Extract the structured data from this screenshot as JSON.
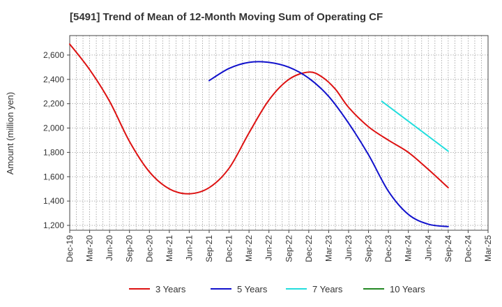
{
  "chart_data": {
    "type": "line",
    "title": "[5491]  Trend of Mean of 12-Month Moving Sum of Operating CF",
    "xlabel": "",
    "ylabel": "Amount (million yen)",
    "ylim": [
      1160,
      2760
    ],
    "yticks": [
      1200,
      1400,
      1600,
      1800,
      2000,
      2200,
      2400,
      2600
    ],
    "ytick_labels": [
      "1,200",
      "1,400",
      "1,600",
      "1,800",
      "2,000",
      "2,200",
      "2,400",
      "2,600"
    ],
    "x_categories": [
      "Dec-19",
      "Mar-20",
      "Jun-20",
      "Sep-20",
      "Dec-20",
      "Mar-21",
      "Jun-21",
      "Sep-21",
      "Dec-21",
      "Mar-22",
      "Jun-22",
      "Sep-22",
      "Dec-22",
      "Mar-23",
      "Jun-23",
      "Sep-23",
      "Dec-23",
      "Mar-24",
      "Jun-24",
      "Sep-24",
      "Dec-24",
      "Mar-25"
    ],
    "x_index_unit": "month offset from Dec-19",
    "grid": true,
    "legend_position": "bottom",
    "series": [
      {
        "name": "3 Years",
        "color": "#dd1111",
        "x": [
          0,
          3,
          6,
          9,
          12,
          15,
          18,
          21,
          24,
          27,
          30,
          33,
          36,
          38,
          40,
          42,
          45,
          48,
          51,
          54,
          57
        ],
        "y": [
          2690,
          2480,
          2220,
          1890,
          1640,
          1500,
          1460,
          1510,
          1670,
          1960,
          2230,
          2400,
          2460,
          2420,
          2320,
          2170,
          2010,
          1900,
          1800,
          1660,
          1510
        ]
      },
      {
        "name": "5 Years",
        "color": "#1111cc",
        "x": [
          21,
          24,
          27,
          30,
          33,
          36,
          39,
          42,
          45,
          48,
          51,
          54,
          57
        ],
        "y": [
          2390,
          2490,
          2540,
          2540,
          2500,
          2410,
          2260,
          2040,
          1780,
          1480,
          1290,
          1210,
          1190
        ]
      },
      {
        "name": "7 Years",
        "color": "#22dddd",
        "x": [
          47,
          57
        ],
        "y": [
          2220,
          1810
        ]
      },
      {
        "name": "10 Years",
        "color": "#228822",
        "x": [],
        "y": []
      }
    ]
  }
}
